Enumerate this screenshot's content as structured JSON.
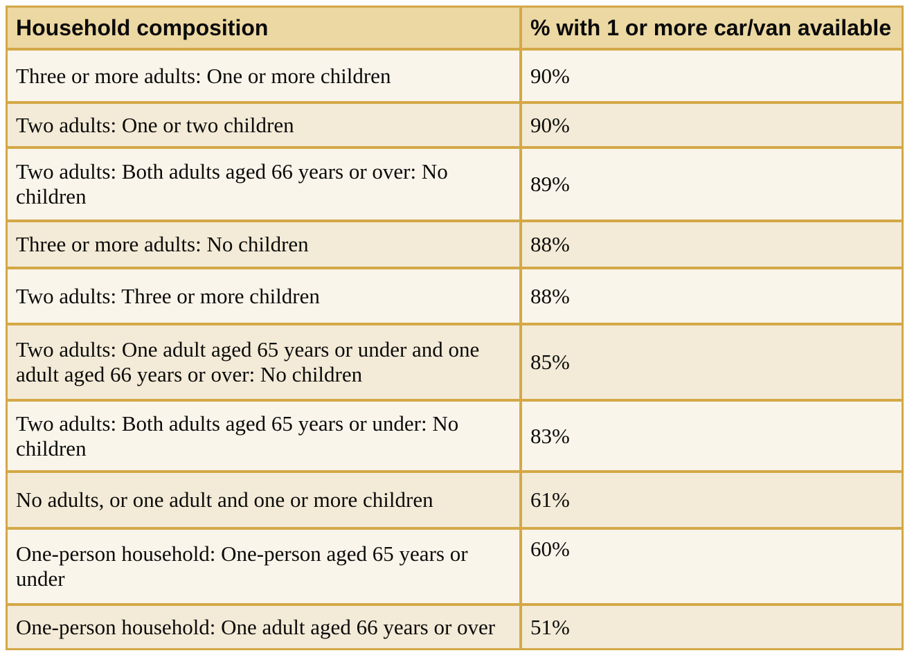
{
  "table": {
    "columns": [
      {
        "label": "Household composition"
      },
      {
        "label": "% with 1 or more car/van available"
      }
    ],
    "rows": [
      {
        "household": "Three or more adults: One or more children",
        "percent": "90%"
      },
      {
        "household": "Two adults: One or two children",
        "percent": "90%"
      },
      {
        "household": "Two adults: Both adults aged 66 years or over: No children",
        "percent": "89%"
      },
      {
        "household": "Three or more adults: No children",
        "percent": "88%"
      },
      {
        "household": "Two adults: Three or more children",
        "percent": "88%"
      },
      {
        "household": "Two adults: One adult aged 65 years or under and one adult aged 66 years or over: No children",
        "percent": "85%"
      },
      {
        "household": "Two adults: Both adults aged 65 years or under: No children",
        "percent": "83%"
      },
      {
        "household": "No adults, or one adult and one or more children",
        "percent": "61%"
      },
      {
        "household": "One-person household: One-person aged 65 years or under",
        "percent": "60%"
      },
      {
        "household": "One-person household: One adult aged 66 years or over",
        "percent": "51%"
      }
    ]
  },
  "colors": {
    "border_gold": "#d4a847",
    "header_bg": "#ecd8a2",
    "row_light": "#faf5ea",
    "row_dark": "#f3ebd7",
    "page_bg": "#ffffff",
    "text": "#0b0b0b"
  },
  "chart_data": {
    "type": "table",
    "title": "",
    "columns": [
      "Household composition",
      "% with 1 or more car/van available"
    ],
    "categories": [
      "Three or more adults: One or more children",
      "Two adults: One or two children",
      "Two adults: Both adults aged 66 years or over: No children",
      "Three or more adults: No children",
      "Two adults: Three or more children",
      "Two adults: One adult aged 65 years or under and one adult aged 66 years or over: No children",
      "Two adults: Both adults aged 65 years or under: No children",
      "No adults, or one adult and one or more children",
      "One-person household: One-person aged 65 years or under",
      "One-person household: One adult aged 66 years or over"
    ],
    "values": [
      90,
      90,
      89,
      88,
      88,
      85,
      83,
      61,
      60,
      51
    ],
    "value_unit": "%"
  }
}
